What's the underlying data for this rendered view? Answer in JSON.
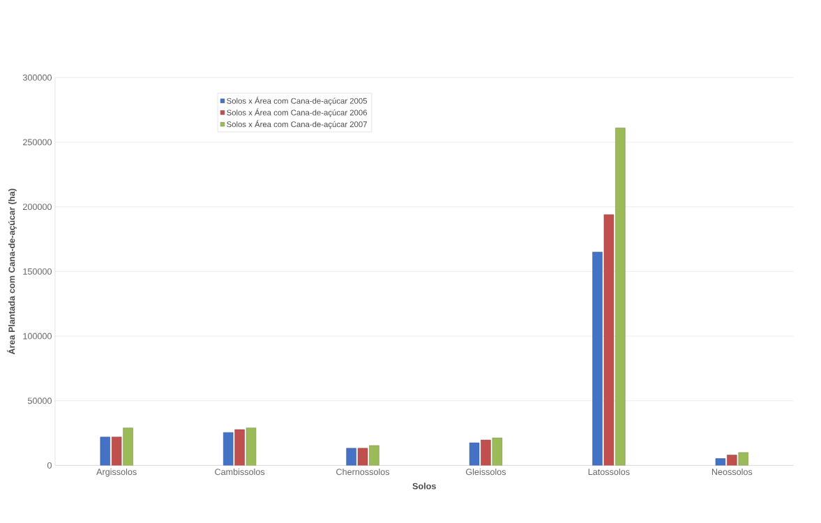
{
  "chart_data": {
    "type": "bar",
    "xlabel": "Solos",
    "ylabel": "Área Plantada com Cana-de-açúcar (ha)",
    "categories": [
      "Argissolos",
      "Cambissolos",
      "Chernossolos",
      "Gleissolos",
      "Latossolos",
      "Neossolos"
    ],
    "series": [
      {
        "name": "Solos x Área com Cana-de-açúcar 2005",
        "color": "#4472c4",
        "values": [
          22000,
          25500,
          13300,
          17500,
          165000,
          5300
        ]
      },
      {
        "name": "Solos x Área com Cana-de-açúcar 2006",
        "color": "#c0504d",
        "values": [
          22000,
          27700,
          13300,
          19700,
          194000,
          8000
        ]
      },
      {
        "name": "Solos x Área com Cana-de-açúcar 2007",
        "color": "#9bbb59",
        "values": [
          29000,
          29000,
          15400,
          21300,
          261000,
          10000
        ]
      }
    ],
    "ylim": [
      0,
      300000
    ],
    "yticks": [
      0,
      50000,
      100000,
      150000,
      200000,
      250000,
      300000
    ],
    "grid": "y",
    "legend": "top left"
  }
}
